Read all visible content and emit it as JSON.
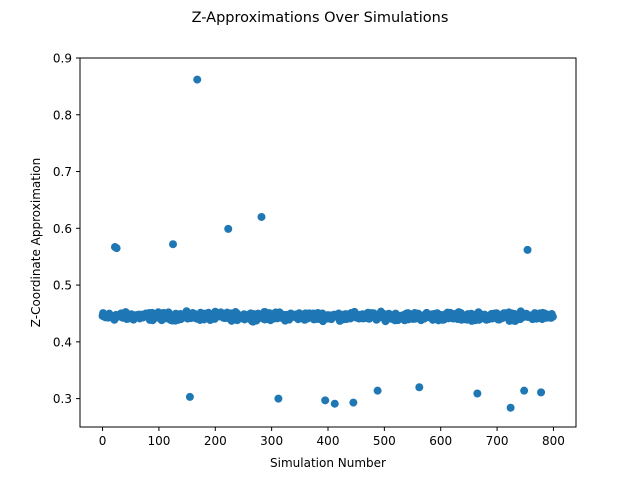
{
  "chart_data": {
    "type": "scatter",
    "title": "Z-Approximations Over Simulations",
    "xlabel": "Simulation Number",
    "ylabel": "Z-Coordinate Approximation",
    "xlim": [
      -40,
      840
    ],
    "ylim": [
      0.25,
      0.9
    ],
    "xticks": [
      0,
      100,
      200,
      300,
      400,
      500,
      600,
      700,
      800
    ],
    "yticks": [
      0.3,
      0.4,
      0.5,
      0.6,
      0.7,
      0.8,
      0.9
    ],
    "xtick_labels": [
      "0",
      "100",
      "200",
      "300",
      "400",
      "500",
      "600",
      "700",
      "800"
    ],
    "ytick_labels": [
      "0.3",
      "0.4",
      "0.5",
      "0.6",
      "0.7",
      "0.8",
      "0.9"
    ],
    "grid": false,
    "legend": null,
    "marker_color": "#1f77b4",
    "series": [
      {
        "n_points": 800,
        "x_start": 0,
        "x_step": 1,
        "baseline_range": [
          0.435,
          0.455
        ],
        "outliers": [
          {
            "x": 22,
            "y": 0.567
          },
          {
            "x": 25,
            "y": 0.565
          },
          {
            "x": 125,
            "y": 0.572
          },
          {
            "x": 155,
            "y": 0.303
          },
          {
            "x": 168,
            "y": 0.862
          },
          {
            "x": 223,
            "y": 0.599
          },
          {
            "x": 282,
            "y": 0.62
          },
          {
            "x": 312,
            "y": 0.3
          },
          {
            "x": 395,
            "y": 0.297
          },
          {
            "x": 412,
            "y": 0.291
          },
          {
            "x": 445,
            "y": 0.293
          },
          {
            "x": 488,
            "y": 0.314
          },
          {
            "x": 562,
            "y": 0.32
          },
          {
            "x": 665,
            "y": 0.309
          },
          {
            "x": 724,
            "y": 0.284
          },
          {
            "x": 748,
            "y": 0.314
          },
          {
            "x": 754,
            "y": 0.562
          },
          {
            "x": 778,
            "y": 0.311
          }
        ]
      }
    ]
  }
}
